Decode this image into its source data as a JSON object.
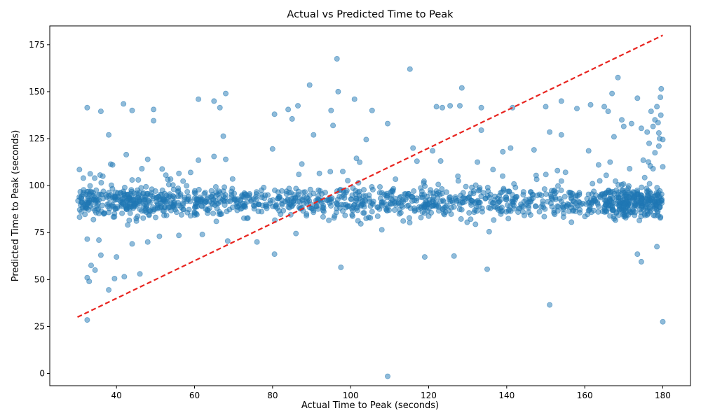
{
  "chart_data": {
    "type": "scatter",
    "title": "Actual vs Predicted Time to Peak",
    "xlabel": "Actual Time to Peak (seconds)",
    "ylabel": "Predicted Time to Peak (seconds)",
    "xlim": [
      22.9,
      187.1
    ],
    "ylim": [
      -6.5,
      185.0
    ],
    "xticks": [
      40,
      60,
      80,
      100,
      120,
      140,
      160,
      180
    ],
    "yticks": [
      0,
      25,
      50,
      75,
      100,
      125,
      150,
      175
    ],
    "grid": false,
    "legend": "none",
    "colors": {
      "points": "#1f77b4",
      "reference_line": "#e8241f"
    },
    "reference_line": {
      "style": "dashed",
      "from": [
        30,
        30
      ],
      "to": [
        180,
        180
      ]
    },
    "scatter_generation": {
      "x_range": [
        30,
        180
      ],
      "band_center": 91,
      "band_spread": 4,
      "count": 1400
    },
    "outliers": [
      [
        96.5,
        167.5
      ],
      [
        115.2,
        162.0
      ],
      [
        89.5,
        153.5
      ],
      [
        128.5,
        152.0
      ],
      [
        179.6,
        151.5
      ],
      [
        168.5,
        157.5
      ],
      [
        96.8,
        150.0
      ],
      [
        179.4,
        147.0
      ],
      [
        68.0,
        149.0
      ],
      [
        167.0,
        149.0
      ],
      [
        41.8,
        143.5
      ],
      [
        44.0,
        140.0
      ],
      [
        49.5,
        140.5
      ],
      [
        32.5,
        141.5
      ],
      [
        36.0,
        139.5
      ],
      [
        61.0,
        146.0
      ],
      [
        65.0,
        145.0
      ],
      [
        66.5,
        141.5
      ],
      [
        80.5,
        138.0
      ],
      [
        84.0,
        140.5
      ],
      [
        86.5,
        142.5
      ],
      [
        95.0,
        140.0
      ],
      [
        101.0,
        146.0
      ],
      [
        105.5,
        140.0
      ],
      [
        122.0,
        142.0
      ],
      [
        123.5,
        141.5
      ],
      [
        125.5,
        142.5
      ],
      [
        128.0,
        142.5
      ],
      [
        133.5,
        141.5
      ],
      [
        141.5,
        141.5
      ],
      [
        150.0,
        142.0
      ],
      [
        154.0,
        145.0
      ],
      [
        158.0,
        141.0
      ],
      [
        161.5,
        143.0
      ],
      [
        165.0,
        142.0
      ],
      [
        166.0,
        139.5
      ],
      [
        173.5,
        146.5
      ],
      [
        178.5,
        142.0
      ],
      [
        85.0,
        135.5
      ],
      [
        95.5,
        132.0
      ],
      [
        109.5,
        133.0
      ],
      [
        49.5,
        134.5
      ],
      [
        38.0,
        127.0
      ],
      [
        90.5,
        127.0
      ],
      [
        104.0,
        124.5
      ],
      [
        133.5,
        129.5
      ],
      [
        151.0,
        128.5
      ],
      [
        154.0,
        127.0
      ],
      [
        167.5,
        126.0
      ],
      [
        170.0,
        131.5
      ],
      [
        174.5,
        130.5
      ],
      [
        176.5,
        122.5
      ],
      [
        179.0,
        121.0
      ],
      [
        80.0,
        119.5
      ],
      [
        116.0,
        120.0
      ],
      [
        121.0,
        118.5
      ],
      [
        141.0,
        120.0
      ],
      [
        147.0,
        119.0
      ],
      [
        161.0,
        118.5
      ],
      [
        139.0,
        118.0
      ],
      [
        42.5,
        116.5
      ],
      [
        48.0,
        114.0
      ],
      [
        61.0,
        113.5
      ],
      [
        65.0,
        115.5
      ],
      [
        68.0,
        114.0
      ],
      [
        87.5,
        111.5
      ],
      [
        101.5,
        114.5
      ],
      [
        117.0,
        113.0
      ],
      [
        132.5,
        112.5
      ],
      [
        166.5,
        112.5
      ],
      [
        175.0,
        113.5
      ],
      [
        39.0,
        111.0
      ],
      [
        46.5,
        109.0
      ],
      [
        56.0,
        106.5
      ],
      [
        59.0,
        107.0
      ],
      [
        92.0,
        106.5
      ],
      [
        98.0,
        107.5
      ],
      [
        127.5,
        105.0
      ],
      [
        136.5,
        108.5
      ],
      [
        153.0,
        108.0
      ],
      [
        165.5,
        105.5
      ],
      [
        171.5,
        109.0
      ],
      [
        31.5,
        104.0
      ],
      [
        36.5,
        105.0
      ],
      [
        44.0,
        103.0
      ],
      [
        32.5,
        71.5
      ],
      [
        35.5,
        71.0
      ],
      [
        44.0,
        69.0
      ],
      [
        48.0,
        70.0
      ],
      [
        51.0,
        73.0
      ],
      [
        56.0,
        73.5
      ],
      [
        62.0,
        74.0
      ],
      [
        68.5,
        70.5
      ],
      [
        76.0,
        70.0
      ],
      [
        86.0,
        74.5
      ],
      [
        108.0,
        76.5
      ],
      [
        135.5,
        75.5
      ],
      [
        33.5,
        57.5
      ],
      [
        36.0,
        63.0
      ],
      [
        34.5,
        55.0
      ],
      [
        32.5,
        51.0
      ],
      [
        33.0,
        49.0
      ],
      [
        40.0,
        62.0
      ],
      [
        42.0,
        51.5
      ],
      [
        39.5,
        50.5
      ],
      [
        46.0,
        53.0
      ],
      [
        80.5,
        63.5
      ],
      [
        97.5,
        56.5
      ],
      [
        119.0,
        62.0
      ],
      [
        126.5,
        62.5
      ],
      [
        135.0,
        55.5
      ],
      [
        173.5,
        63.5
      ],
      [
        174.5,
        59.5
      ],
      [
        178.5,
        67.5
      ],
      [
        38.0,
        44.5
      ],
      [
        151.0,
        36.5
      ],
      [
        32.5,
        28.5
      ],
      [
        180.0,
        27.5
      ],
      [
        109.5,
        -1.5
      ],
      [
        30.5,
        108.5
      ],
      [
        178.0,
        135.0
      ],
      [
        179.5,
        137.5
      ],
      [
        177.0,
        139.5
      ],
      [
        178.8,
        133.5
      ],
      [
        176.0,
        128.5
      ],
      [
        177.5,
        131.5
      ],
      [
        179.2,
        125.0
      ],
      [
        178.0,
        117.5
      ],
      [
        180.0,
        110.0
      ],
      [
        177.5,
        109.0
      ],
      [
        179.0,
        128.0
      ],
      [
        180.0,
        124.5
      ],
      [
        176.8,
        110.5
      ],
      [
        172.0,
        133.0
      ],
      [
        169.5,
        135.0
      ]
    ]
  }
}
